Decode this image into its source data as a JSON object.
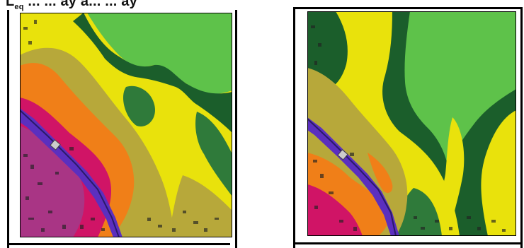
{
  "header": {
    "prefix": "L",
    "subscript": "eq",
    "title_rest": " ...  ... ay a... ... ay"
  },
  "maps": [
    {
      "colors": {
        "low": "#1b5e2b",
        "low2": "#2f7a3a",
        "quiet": "#5ec24a",
        "mid1": "#b7a83a",
        "mid2": "#e9e20c",
        "high1": "#f07f18",
        "high2": "#d01466",
        "high3": "#a93585",
        "road": "#5b2fbf"
      }
    },
    {
      "colors": {
        "low": "#1b5e2b",
        "low2": "#2f7a3a",
        "quiet": "#5ec24a",
        "mid1": "#b7a83a",
        "mid2": "#e9e20c",
        "high1": "#f07f18",
        "high2": "#d01466",
        "high3": "#a93585",
        "road": "#5b2fbf"
      }
    }
  ]
}
